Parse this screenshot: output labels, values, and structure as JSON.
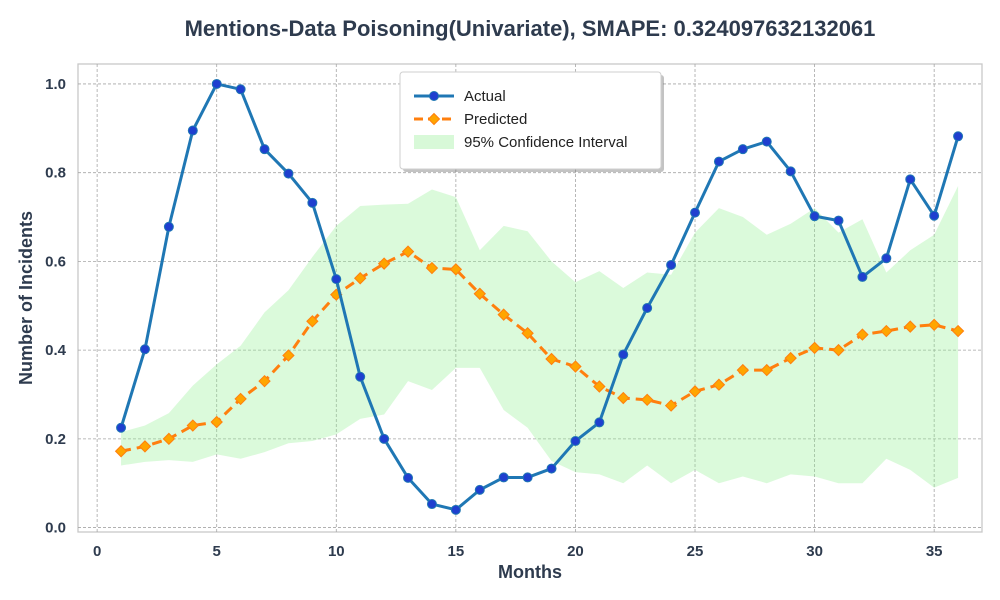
{
  "chart_data": {
    "type": "line",
    "title": "Mentions-Data Poisoning(Univariate), SMAPE: 0.324097632132061",
    "xlabel": "Months",
    "ylabel": "Number of Incidents",
    "xlim": [
      -0.8,
      37.0
    ],
    "ylim": [
      -0.01,
      1.045
    ],
    "xticks": [
      0,
      5,
      10,
      15,
      20,
      25,
      30,
      35
    ],
    "yticks": [
      0.0,
      0.2,
      0.4,
      0.6,
      0.8,
      1.0
    ],
    "grid": true,
    "legend_position": "top-center",
    "x": [
      1,
      2,
      3,
      4,
      5,
      6,
      7,
      8,
      9,
      10,
      11,
      12,
      13,
      14,
      15,
      16,
      17,
      18,
      19,
      20,
      21,
      22,
      23,
      24,
      25,
      26,
      27,
      28,
      29,
      30,
      31,
      32,
      33,
      34,
      35,
      36
    ],
    "series": [
      {
        "name": "Actual",
        "color": "#1f77b4",
        "marker_color": "#1f3fcf",
        "marker": "circle",
        "values": [
          0.225,
          0.402,
          0.678,
          0.895,
          1.0,
          0.988,
          0.853,
          0.798,
          0.732,
          0.56,
          0.34,
          0.2,
          0.112,
          0.053,
          0.04,
          0.085,
          0.113,
          0.113,
          0.133,
          0.195,
          0.237,
          0.39,
          0.495,
          0.592,
          0.71,
          0.825,
          0.853,
          0.87,
          0.803,
          0.702,
          0.692,
          0.565,
          0.607,
          0.785,
          0.703,
          0.882
        ]
      },
      {
        "name": "Predicted",
        "color": "#ff7f0e",
        "marker_color": "#ffa500",
        "marker": "diamond",
        "values": [
          0.172,
          0.183,
          0.2,
          0.23,
          0.238,
          0.29,
          0.33,
          0.388,
          0.465,
          0.525,
          0.562,
          0.595,
          0.622,
          0.585,
          0.582,
          0.527,
          0.48,
          0.438,
          0.38,
          0.363,
          0.318,
          0.292,
          0.288,
          0.275,
          0.307,
          0.322,
          0.355,
          0.355,
          0.382,
          0.405,
          0.4,
          0.435,
          0.443,
          0.453,
          0.457,
          0.443
        ]
      }
    ],
    "confidence_interval": {
      "name": "95% Confidence Interval",
      "color": "#90ee90",
      "lower": [
        0.14,
        0.148,
        0.152,
        0.148,
        0.165,
        0.155,
        0.17,
        0.19,
        0.195,
        0.21,
        0.245,
        0.255,
        0.33,
        0.31,
        0.36,
        0.36,
        0.265,
        0.225,
        0.15,
        0.125,
        0.12,
        0.1,
        0.14,
        0.1,
        0.13,
        0.1,
        0.115,
        0.1,
        0.12,
        0.115,
        0.1,
        0.1,
        0.155,
        0.13,
        0.09,
        0.112
      ],
      "upper": [
        0.215,
        0.23,
        0.258,
        0.32,
        0.368,
        0.41,
        0.485,
        0.535,
        0.61,
        0.68,
        0.725,
        0.728,
        0.73,
        0.762,
        0.745,
        0.625,
        0.68,
        0.668,
        0.6,
        0.553,
        0.578,
        0.54,
        0.575,
        0.57,
        0.665,
        0.72,
        0.7,
        0.66,
        0.685,
        0.72,
        0.665,
        0.695,
        0.575,
        0.625,
        0.66,
        0.77
      ]
    }
  }
}
